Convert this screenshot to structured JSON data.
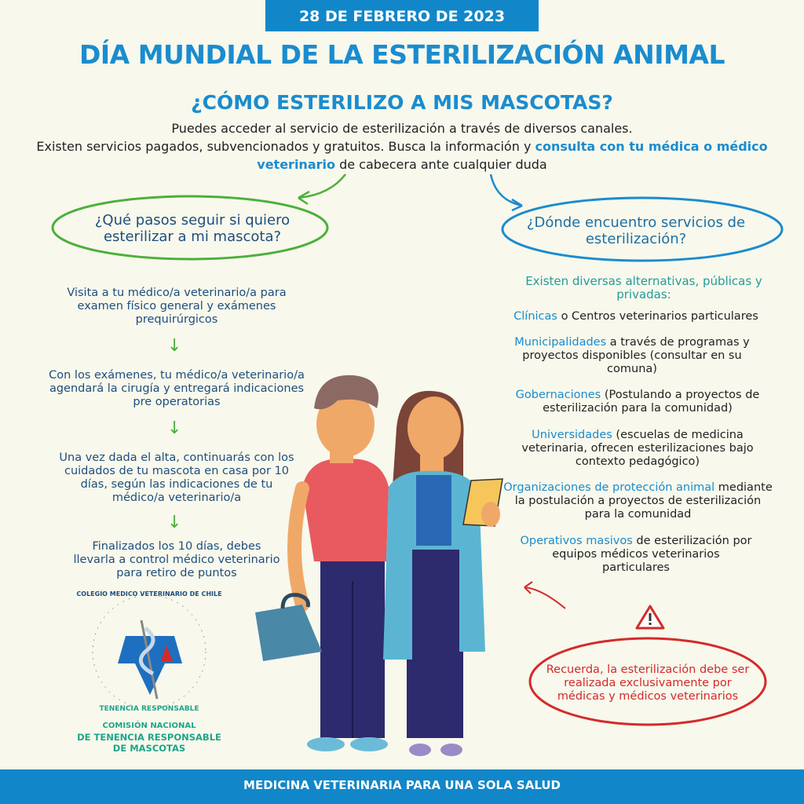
{
  "header": {
    "date": "28 DE FEBRERO DE 2023",
    "title": "DÍA MUNDIAL DE LA ESTERILIZACIÓN ANIMAL",
    "subtitle": "¿CÓMO ESTERILIZO A MIS MASCOTAS?",
    "intro_line1": "Puedes acceder al servicio de esterilización a través de diversos canales.",
    "intro_line2_a": "Existen servicios pagados, subvencionados y gratuitos. Busca la información y ",
    "intro_highlight": "consulta con tu médica o médico veterinario",
    "intro_line2_b": " de cabecera ante cualquier duda"
  },
  "left": {
    "question": "¿Qué pasos seguir si quiero esterilizar a mi mascota?",
    "steps": [
      "Visita a tu médico/a veterinario/a para examen físico general y exámenes prequirúrgicos",
      "Con los exámenes, tu médico/a veterinario/a agendará la cirugía y entregará indicaciones pre operatorias",
      "Una vez dada el alta, continuarás con los cuidados de tu mascota en casa por 10 días, según las indicaciones de tu médico/a veterinario/a",
      "Finalizados los 10 días, debes llevarla a control médico veterinario para retiro de puntos"
    ],
    "arrow_icon": "arrow-down"
  },
  "right": {
    "question": "¿Dónde encuentro servicios de esterilización?",
    "intro": "Existen diversas alternativas, públicas y privadas:",
    "alternatives": [
      {
        "key": "Clínicas",
        "text": " o Centros veterinarios particulares"
      },
      {
        "key": "Municipalidades",
        "text": " a través de programas y proyectos disponibles (consultar en su comuna)"
      },
      {
        "key": "Gobernaciones",
        "text": " (Postulando a proyectos de esterilización para la comunidad)"
      },
      {
        "key": "Universidades",
        "text": " (escuelas de medicina veterinaria, ofrecen esterilizaciones bajo contexto pedagógico)"
      },
      {
        "key": "Organizaciones de protección animal",
        "text": " mediante la postulación a proyectos de esterilización para la comunidad"
      },
      {
        "key": "Operativos masivos",
        "text": " de esterilización por equipos médicos veterinarios particulares"
      }
    ],
    "reminder": "Recuerda, la esterilización debe ser realizada exclusivamente por médicas y médicos veterinarios"
  },
  "logo": {
    "ring_top": "COLEGIO MEDICO VETERINARIO DE CHILE",
    "ring_bottom": "TENENCIA RESPONSABLE",
    "caption_line1": "COMISIÓN NACIONAL",
    "caption_line2": "DE TENENCIA RESPONSABLE",
    "caption_line3": "DE MASCOTAS"
  },
  "footer": {
    "text": "MEDICINA VETERINARIA PARA UNA SOLA SALUD"
  },
  "colors": {
    "brand_blue": "#1187c9",
    "title_blue": "#1a8ccf",
    "navy": "#1d4e7e",
    "green": "#4caf3a",
    "red": "#d42a2a",
    "teal": "#259a9a",
    "background": "#f8f8ec"
  }
}
